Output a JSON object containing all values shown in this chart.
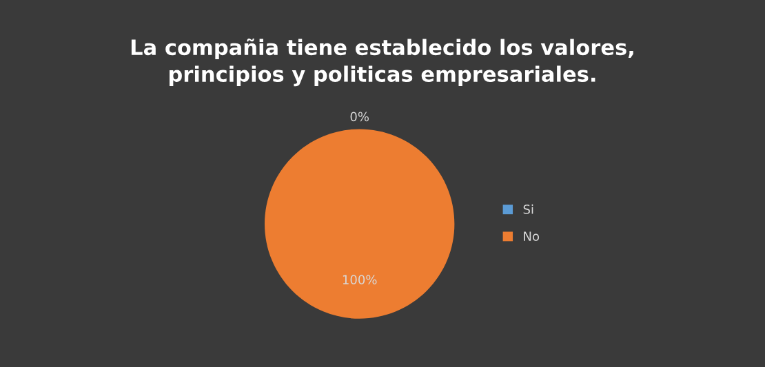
{
  "chart_data": {
    "type": "pie",
    "title": "La compañia tiene establecido los valores,\nprincipios y politicas empresariales.",
    "categories": [
      "Si",
      "No"
    ],
    "values": [
      0,
      100
    ],
    "colors": [
      "#5b9bd5",
      "#ed7d31"
    ],
    "value_labels": [
      "0%",
      "100%"
    ],
    "legend": "right"
  }
}
